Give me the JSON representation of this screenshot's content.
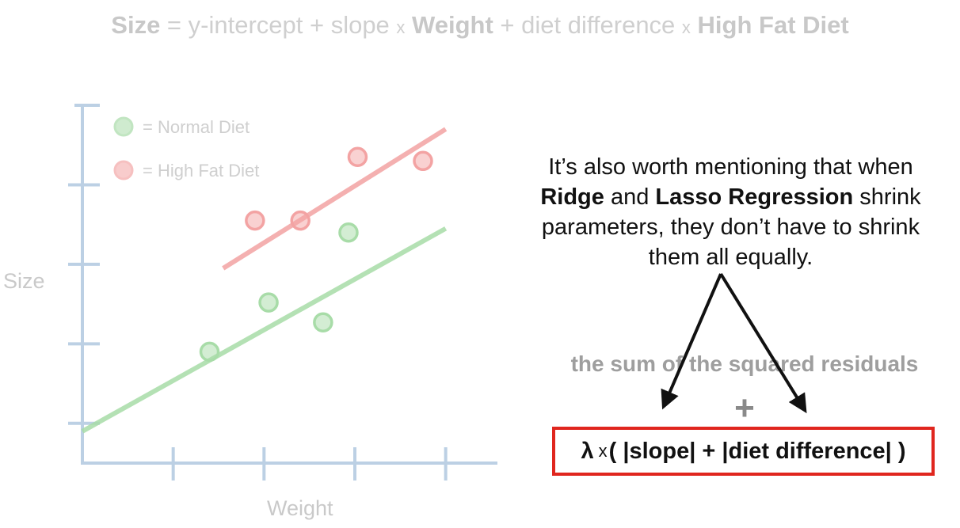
{
  "formula": {
    "size": "Size",
    "eq": " = y-intercept + slope ",
    "times1": "x",
    "weight": "Weight",
    "mid": " + diet difference ",
    "times2": "x",
    "diet": "High Fat Diet"
  },
  "legend": {
    "normal": "= Normal Diet",
    "highfat": "= High Fat Diet"
  },
  "colors": {
    "normal": "#a8dca8",
    "highfat": "#f3a3a3",
    "axis": "#bcd0e4",
    "box": "#e0261e"
  },
  "chart_data": {
    "type": "scatter",
    "xlabel": "Weight",
    "ylabel": "Size",
    "series": [
      {
        "name": "Normal Diet",
        "x": [
          1.4,
          2.05,
          2.65,
          2.93
        ],
        "y": [
          0.9,
          1.52,
          1.27,
          2.4
        ]
      },
      {
        "name": "High Fat Diet",
        "x": [
          1.9,
          2.4,
          3.03,
          3.75
        ],
        "y": [
          2.55,
          2.55,
          3.35,
          3.3
        ]
      }
    ],
    "fit_lines": [
      {
        "name": "Normal Diet",
        "x": [
          0,
          4
        ],
        "y": [
          -0.1,
          2.45
        ]
      },
      {
        "name": "High Fat Diet",
        "x": [
          1.55,
          4
        ],
        "y": [
          1.95,
          3.7
        ]
      }
    ],
    "xlim": [
      0,
      4.5
    ],
    "ylim": [
      -0.5,
      4
    ]
  },
  "note": {
    "line1": "It’s also worth mentioning that when",
    "ridge": "Ridge",
    "and": " and ",
    "lasso": "Lasso Regression",
    "rest1": " shrink",
    "line3": "parameters, they don’t have to shrink",
    "line4": "them all equally."
  },
  "ssr": "the sum of the squared residuals",
  "plus": "+",
  "penalty": {
    "lambda": "λ",
    "times": "x",
    "expr": "( |slope| + |diet difference| )"
  }
}
